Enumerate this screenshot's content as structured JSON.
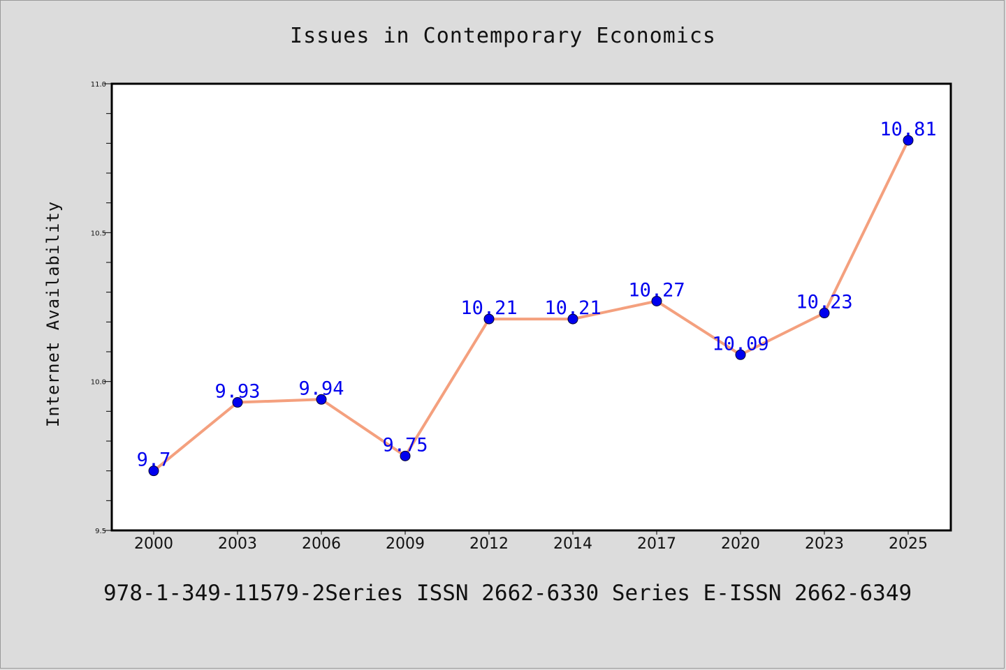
{
  "chart_data": {
    "type": "line",
    "title": "Issues in Contemporary Economics",
    "xlabel": "",
    "ylabel": "Internet Availability",
    "categories": [
      "2000",
      "2003",
      "2006",
      "2009",
      "2012",
      "2014",
      "2017",
      "2020",
      "2023",
      "2025"
    ],
    "series": [
      {
        "values": [
          9.7,
          9.93,
          9.94,
          9.75,
          10.21,
          10.21,
          10.27,
          10.09,
          10.23,
          10.81
        ],
        "data_labels": [
          "9.7",
          "9.93",
          "9.94",
          "9.75",
          "10.21",
          "10.21",
          "10.27",
          "10.09",
          "10.23",
          "10.81"
        ],
        "line_color": "#f4a07e",
        "marker_color": "#0000ee",
        "label_color": "#0000ee"
      }
    ],
    "ylim": [
      9.5,
      11.0
    ],
    "y_ticks": [
      "9.5",
      "10.0",
      "10.5",
      "11.0"
    ],
    "grid": false,
    "background": "#ffffff"
  },
  "footer": "978-1-349-11579-2Series ISSN 2662-6330 Series E-ISSN 2662-6349",
  "colors": {
    "page_background": "#dcdcdc",
    "axis": "#000000"
  }
}
